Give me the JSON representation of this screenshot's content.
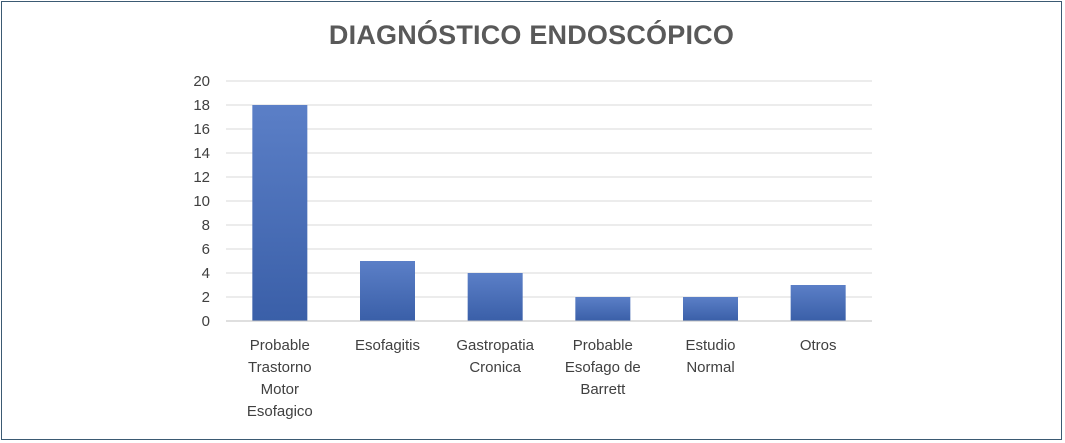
{
  "chart_data": {
    "type": "bar",
    "title": "DIAGNÓSTICO ENDOSCÓPICO",
    "categories": [
      [
        "Probable",
        "Trastorno",
        "Motor",
        "Esofagico"
      ],
      [
        "Esofagitis"
      ],
      [
        "Gastropatia",
        "Cronica"
      ],
      [
        "Probable",
        "Esofago de",
        "Barrett"
      ],
      [
        "Estudio",
        "Normal"
      ],
      [
        "Otros"
      ]
    ],
    "values": [
      18,
      5,
      4,
      2,
      2,
      3
    ],
    "ylim": [
      0,
      20
    ],
    "yticks": [
      0,
      2,
      4,
      6,
      8,
      10,
      12,
      14,
      16,
      18,
      20
    ],
    "grid": true,
    "legend": "none",
    "colors": {
      "bar_top": "#5b7fc7",
      "bar_bottom": "#3a5fa8",
      "grid": "#d9d9d9",
      "text": "#404040",
      "title": "#595959"
    }
  }
}
